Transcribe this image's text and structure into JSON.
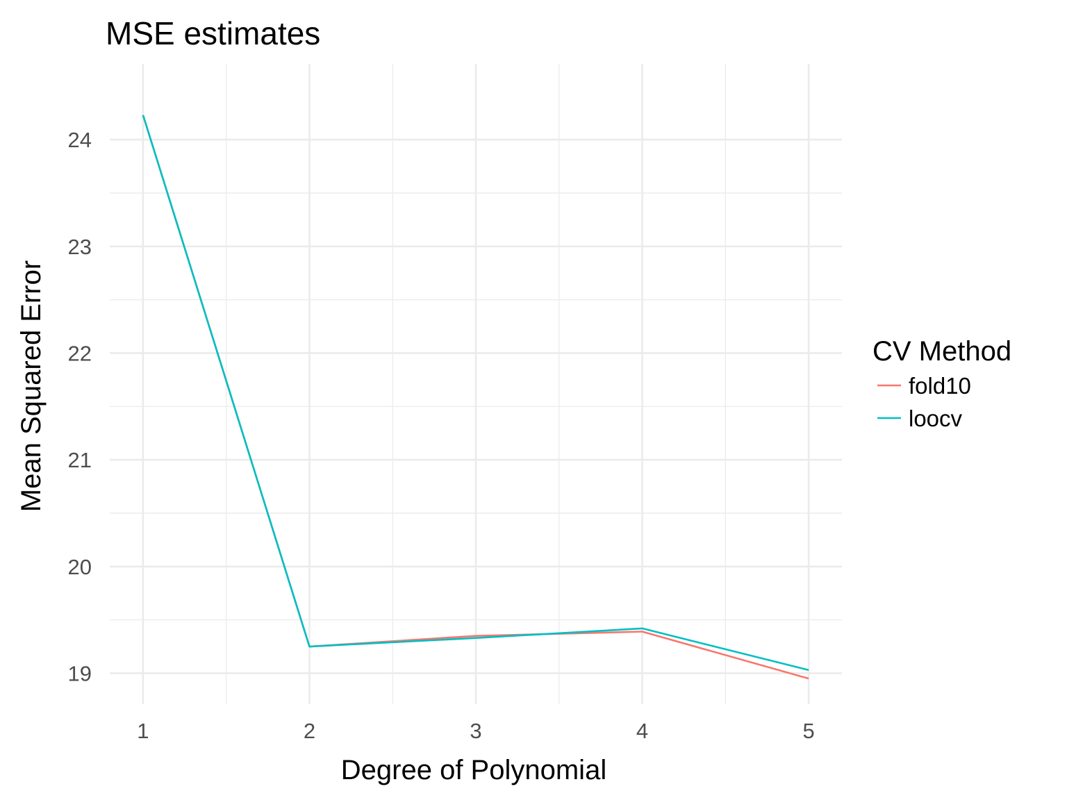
{
  "chart_data": {
    "type": "line",
    "title": "MSE estimates",
    "xlabel": "Degree of Polynomial",
    "ylabel": "Mean Squared Error",
    "x": [
      1,
      2,
      3,
      4,
      5
    ],
    "x_ticks": [
      1,
      2,
      3,
      4,
      5
    ],
    "y_ticks": [
      19,
      20,
      21,
      22,
      23,
      24
    ],
    "xlim": [
      0.8,
      5.2
    ],
    "ylim": [
      18.71,
      24.71
    ],
    "grid": true,
    "legend": {
      "title": "CV Method",
      "placement": "right"
    },
    "series": [
      {
        "name": "fold10",
        "color": "#F8766D",
        "values": [
          24.23,
          19.25,
          19.35,
          19.39,
          18.95
        ]
      },
      {
        "name": "loocv",
        "color": "#00BFC4",
        "values": [
          24.23,
          19.25,
          19.33,
          19.42,
          19.03
        ]
      }
    ]
  }
}
